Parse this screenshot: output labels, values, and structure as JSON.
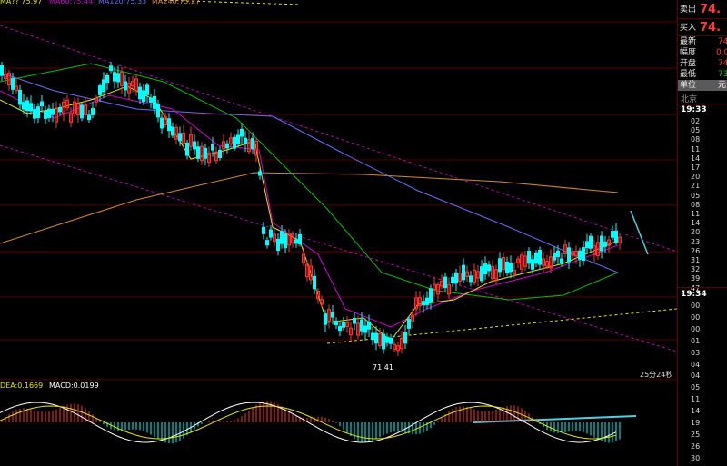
{
  "chart_data": {
    "type": "candlestick",
    "price_annotation": "71.41",
    "countdown": "25分24秒",
    "ma_legend": [
      "MA?? 75.97",
      "MA60:75.44",
      "MA120:75.33",
      "MA240:75.27"
    ],
    "macd_legend": [
      "DEA:0.1669",
      "MACD:0.0199"
    ],
    "colors": {
      "up": "#ff3232",
      "down": "#00ffff",
      "ma_yellow": "#e6e600",
      "ma_magenta": "#d000d0",
      "ma_green": "#00c000",
      "ma_blue": "#6a6aff",
      "ma_orange": "#d88a28",
      "channel": "#c000c0",
      "trendline": "#e6e600",
      "arrow": "#4fd0e0",
      "grid": "#5a0000"
    }
  },
  "panel": {
    "sell_label": "卖出",
    "sell_value": "74.",
    "buy_label": "买入",
    "buy_value": "74.",
    "rows": [
      {
        "label": "最新",
        "value": "74"
      },
      {
        "label": "幅度",
        "value": "0.0"
      },
      {
        "label": "开盘",
        "value": "74"
      },
      {
        "label": "最低",
        "value": "73"
      },
      {
        "label": "单位",
        "value": "元"
      }
    ],
    "city": "北京",
    "time1": "19:33",
    "ticks1": [
      "02",
      "05",
      "08",
      "11",
      "14",
      "17",
      "20",
      "21",
      "05",
      "08",
      "11",
      "14",
      "20",
      "23",
      "26",
      "31",
      "32",
      "39",
      "47"
    ],
    "time2": "19:34",
    "ticks2": [
      "00",
      "00",
      "00",
      "01",
      "03",
      "04",
      "04",
      "05",
      "11",
      "14",
      "19",
      "25",
      "26",
      "30"
    ]
  }
}
